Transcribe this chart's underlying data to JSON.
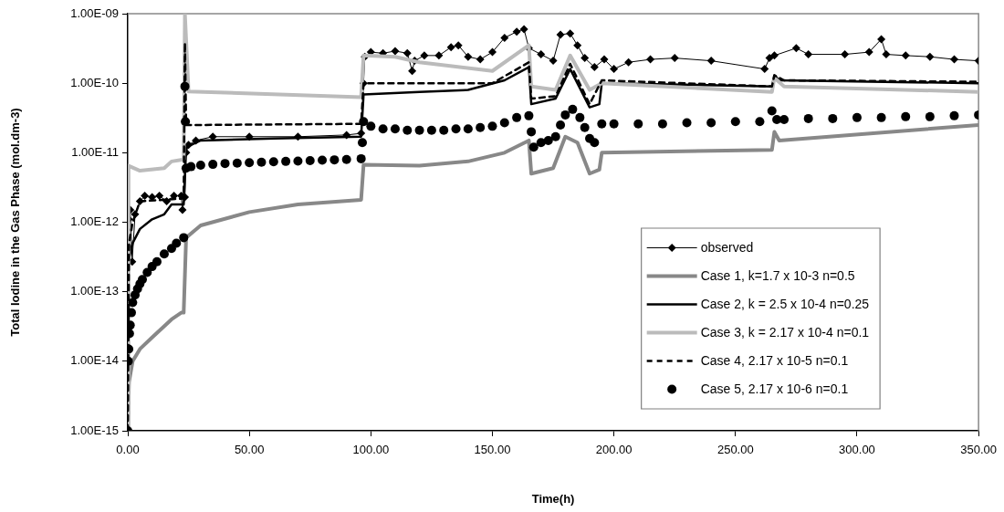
{
  "chart_data": {
    "type": "line",
    "xlabel": "Time(h)",
    "ylabel": "Total Iodine in the Gas Phase (mol.dm-3)",
    "log": "y",
    "grid": false,
    "legend": "bottom right",
    "xlim": [
      0,
      350
    ],
    "xticks": [
      {
        "value": 0,
        "label": "0.00"
      },
      {
        "value": 50,
        "label": "50.00"
      },
      {
        "value": 100,
        "label": "100.00"
      },
      {
        "value": 150,
        "label": "150.00"
      },
      {
        "value": 200,
        "label": "200.00"
      },
      {
        "value": 250,
        "label": "250.00"
      },
      {
        "value": 300,
        "label": "300.00"
      },
      {
        "value": 350,
        "label": "350.00"
      }
    ],
    "ylim": [
      1e-15,
      1e-09
    ],
    "yticks": [
      {
        "value": 1e-15,
        "label": "1.00E-15"
      },
      {
        "value": 1e-14,
        "label": "1.00E-14"
      },
      {
        "value": 1e-13,
        "label": "1.00E-13"
      },
      {
        "value": 1e-12,
        "label": "1.00E-12"
      },
      {
        "value": 1e-11,
        "label": "1.00E-11"
      },
      {
        "value": 1e-10,
        "label": "1.00E-10"
      },
      {
        "value": 1e-09,
        "label": "1.00E-09"
      }
    ],
    "series": [
      {
        "name": "observed",
        "type": "line",
        "color": "#000000",
        "marker": "diamond",
        "line_style": "solid",
        "x": [
          0,
          0.4,
          1,
          1.8,
          3,
          5,
          7,
          10,
          13,
          16,
          19,
          22,
          22.5,
          23.5,
          24,
          25,
          28,
          35,
          50,
          70,
          90,
          96,
          97,
          97.5,
          100,
          105,
          110,
          115,
          117,
          118,
          122,
          128,
          133,
          136,
          140,
          145,
          150,
          155,
          160,
          163,
          165,
          170,
          175,
          178,
          182,
          185,
          188,
          192,
          196,
          200,
          206,
          215,
          225,
          240,
          262,
          264,
          266,
          275,
          280,
          295,
          305,
          310,
          312,
          320,
          330,
          340,
          350
        ],
        "values": [
          4.5e-13,
          1.1e-12,
          1.5e-12,
          2.7e-13,
          1.3e-12,
          2e-12,
          2.4e-12,
          2.3e-12,
          2.4e-12,
          2e-12,
          2.4e-12,
          2.4e-12,
          1.5e-12,
          2.3e-12,
          1e-11,
          1.3e-11,
          1.5e-11,
          1.7e-11,
          1.7e-11,
          1.7e-11,
          1.8e-11,
          1.9e-11,
          1e-10,
          2.4e-10,
          2.8e-10,
          2.7e-10,
          2.9e-10,
          2.7e-10,
          1.5e-10,
          2.1e-10,
          2.5e-10,
          2.5e-10,
          3.3e-10,
          3.5e-10,
          2.4e-10,
          2.2e-10,
          2.8e-10,
          4.5e-10,
          5.5e-10,
          6e-10,
          3.2e-10,
          2.6e-10,
          2.1e-10,
          5e-10,
          5.2e-10,
          3.5e-10,
          2.3e-10,
          1.7e-10,
          2.2e-10,
          1.6e-10,
          2e-10,
          2.2e-10,
          2.3e-10,
          2.1e-10,
          1.6e-10,
          2.3e-10,
          2.5e-10,
          3.2e-10,
          2.6e-10,
          2.6e-10,
          2.8e-10,
          4.3e-10,
          2.6e-10,
          2.5e-10,
          2.4e-10,
          2.2e-10,
          2.1e-10
        ]
      },
      {
        "name": "Case 1, k=1.7 x 10-3 n=0.5",
        "type": "line",
        "color": "#888888",
        "marker": "none",
        "line_style": "solid",
        "x": [
          0,
          0.5,
          2,
          5,
          10,
          18,
          22,
          23,
          24,
          30,
          50,
          70,
          96,
          97,
          120,
          140,
          155,
          165,
          166,
          175,
          180,
          185,
          190,
          194,
          195,
          265,
          266,
          268,
          350
        ],
        "values": [
          1e-15,
          5e-15,
          1e-14,
          1.5e-14,
          2.2e-14,
          4e-14,
          5e-14,
          5e-14,
          6e-13,
          9e-13,
          1.4e-12,
          1.8e-12,
          2.1e-12,
          6.7e-12,
          6.5e-12,
          7.5e-12,
          1e-11,
          1.5e-11,
          5e-12,
          6e-12,
          1.7e-11,
          1.4e-11,
          5e-12,
          5.7e-12,
          1e-11,
          1.1e-11,
          2e-11,
          1.5e-11,
          2.5e-11
        ]
      },
      {
        "name": "Case 2, k = 2.5 x 10-4 n=0.25",
        "type": "line",
        "color": "#000000",
        "marker": "none",
        "line_style": "solid",
        "x": [
          0,
          0.5,
          2,
          5,
          10,
          15,
          18,
          23,
          24,
          30,
          60,
          96,
          97,
          120,
          140,
          155,
          165,
          166,
          176,
          182,
          190,
          194,
          195,
          265,
          266,
          268,
          350
        ],
        "values": [
          1e-13,
          3e-13,
          5e-13,
          8e-13,
          1.1e-12,
          1.3e-12,
          1.8e-12,
          1.8e-12,
          1.2e-11,
          1.5e-11,
          1.6e-11,
          1.7e-11,
          6.9e-11,
          7.5e-11,
          8e-11,
          1.1e-10,
          1.7e-10,
          5e-11,
          6e-11,
          1.6e-10,
          4.5e-11,
          5e-11,
          1e-10,
          9e-11,
          1.3e-10,
          1.1e-10,
          1e-10
        ]
      },
      {
        "name": "Case 3, k = 2.17 x 10-4 n=0.1",
        "type": "line",
        "color": "#bbbbbb",
        "marker": "none",
        "line_style": "solid",
        "x": [
          0,
          0.3,
          5,
          15,
          18,
          23,
          23.5,
          25,
          96,
          97,
          110,
          120,
          150,
          165,
          166,
          176,
          182,
          190,
          195,
          265,
          266,
          270,
          350
        ],
        "values": [
          1e-15,
          6.5e-12,
          5.5e-12,
          6e-12,
          7.5e-12,
          8e-12,
          1e-09,
          7.6e-11,
          6.3e-11,
          2.5e-10,
          2.4e-10,
          2e-10,
          1.5e-10,
          3.5e-10,
          9e-11,
          8e-11,
          2.5e-10,
          8e-11,
          1e-10,
          7.5e-11,
          1.2e-10,
          9e-11,
          7.5e-11
        ]
      },
      {
        "name": "Case 4, 2.17 x 10-5 n=0.1",
        "type": "line",
        "color": "#000000",
        "marker": "none",
        "line_style": "dashed",
        "x": [
          0,
          0.5,
          2,
          5,
          23,
          23.5,
          24,
          96,
          97,
          150,
          165,
          166,
          176,
          182,
          190,
          195,
          265,
          266,
          270,
          350
        ],
        "values": [
          1e-15,
          5e-13,
          1e-12,
          2e-12,
          2.2e-12,
          3.8e-10,
          2.5e-11,
          2.6e-11,
          1e-10,
          1e-10,
          2e-10,
          6e-11,
          6.5e-11,
          1.9e-10,
          5e-11,
          1.1e-10,
          9e-11,
          1.3e-10,
          1.1e-10,
          1.05e-10
        ]
      },
      {
        "name": "Case 5, 2.17 x 10-6 n=0.1",
        "type": "scatter",
        "color": "#000000",
        "marker": "circle",
        "x": [
          0,
          0.2,
          0.4,
          0.7,
          1,
          1.5,
          2,
          3,
          4,
          5,
          6,
          8,
          10,
          12,
          15,
          18,
          20,
          23,
          23.5,
          23.7,
          24,
          26,
          30,
          35,
          40,
          45,
          50,
          55,
          60,
          65,
          70,
          75,
          80,
          85,
          90,
          96,
          96.5,
          97,
          100,
          105,
          110,
          115,
          120,
          125,
          130,
          135,
          140,
          145,
          150,
          155,
          160,
          165,
          166,
          167,
          170,
          173,
          176,
          178,
          180,
          183,
          186,
          188,
          190,
          192,
          195,
          200,
          210,
          220,
          230,
          240,
          250,
          260,
          265,
          267,
          270,
          280,
          290,
          300,
          310,
          320,
          330,
          340,
          350
        ],
        "values": [
          1e-15,
          1e-14,
          1.5e-14,
          2.5e-14,
          3.3e-14,
          5e-14,
          7e-14,
          9e-14,
          1.1e-13,
          1.3e-13,
          1.5e-13,
          1.9e-13,
          2.3e-13,
          2.7e-13,
          3.5e-13,
          4.2e-13,
          5e-13,
          6e-13,
          9e-11,
          2.8e-11,
          6e-12,
          6.3e-12,
          6.6e-12,
          6.8e-12,
          7e-12,
          7.1e-12,
          7.2e-12,
          7.3e-12,
          7.4e-12,
          7.5e-12,
          7.6e-12,
          7.7e-12,
          7.8e-12,
          7.9e-12,
          8e-12,
          8.2e-12,
          1.4e-11,
          2.8e-11,
          2.4e-11,
          2.2e-11,
          2.2e-11,
          2.1e-11,
          2.1e-11,
          2.1e-11,
          2.1e-11,
          2.2e-11,
          2.2e-11,
          2.3e-11,
          2.4e-11,
          2.7e-11,
          3.2e-11,
          3.4e-11,
          2e-11,
          1.2e-11,
          1.4e-11,
          1.5e-11,
          1.7e-11,
          2.5e-11,
          3.5e-11,
          4.2e-11,
          3.2e-11,
          2.3e-11,
          1.6e-11,
          1.4e-11,
          2.6e-11,
          2.6e-11,
          2.6e-11,
          2.6e-11,
          2.7e-11,
          2.7e-11,
          2.8e-11,
          2.8e-11,
          4e-11,
          3e-11,
          3e-11,
          3.1e-11,
          3.1e-11,
          3.2e-11,
          3.2e-11,
          3.3e-11,
          3.3e-11,
          3.4e-11,
          3.5e-11
        ]
      }
    ]
  }
}
